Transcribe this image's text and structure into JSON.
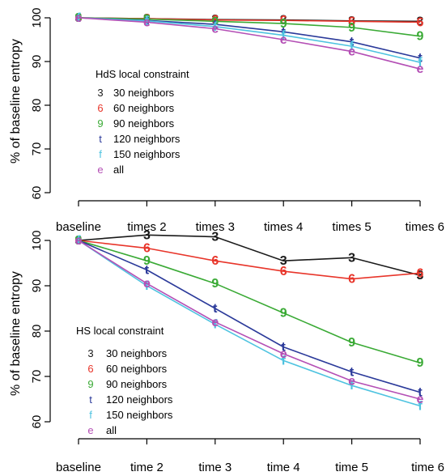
{
  "chart_data": [
    {
      "type": "line",
      "ylabel": "% of baseline entropy",
      "xlabel": "",
      "categories": [
        "baseline",
        "times 2",
        "times 3",
        "times 4",
        "times 5",
        "times 6"
      ],
      "yticks": [
        60,
        70,
        80,
        90,
        100
      ],
      "ylim": [
        58,
        101
      ],
      "grid": false,
      "legend_title": "HdS local constraint",
      "legend_position": "left",
      "series": [
        {
          "name": "30 neighbors",
          "symbol": "3",
          "color": "#1a1a1a",
          "values": [
            100,
            99.8,
            99.6,
            99.5,
            99.3,
            99.2
          ]
        },
        {
          "name": "60 neighbors",
          "symbol": "6",
          "color": "#e8352a",
          "values": [
            100,
            99.8,
            99.5,
            99.4,
            99.2,
            99.0
          ]
        },
        {
          "name": "90 neighbors",
          "symbol": "9",
          "color": "#3aaa35",
          "values": [
            100,
            99.7,
            99.2,
            98.7,
            97.8,
            95.8
          ]
        },
        {
          "name": "120 neighbors",
          "symbol": "t",
          "color": "#2b3a9a",
          "values": [
            100,
            99.4,
            98.5,
            96.8,
            94.5,
            90.8
          ]
        },
        {
          "name": "150 neighbors",
          "symbol": "f",
          "color": "#4ec3e0",
          "values": [
            100,
            99.3,
            98.0,
            96.0,
            93.5,
            89.8
          ]
        },
        {
          "name": "all",
          "symbol": "e",
          "color": "#b44fb5",
          "values": [
            100,
            99.0,
            97.5,
            95.0,
            92.3,
            88.3
          ]
        }
      ]
    },
    {
      "type": "line",
      "ylabel": "% of baseline entropy",
      "xlabel": "",
      "categories": [
        "baseline",
        "time 2",
        "time 3",
        "time 4",
        "time 5",
        "time 6"
      ],
      "yticks": [
        60,
        70,
        80,
        90,
        100
      ],
      "ylim": [
        58,
        101
      ],
      "grid": false,
      "legend_title": "HS local constraint",
      "legend_position": "left",
      "series": [
        {
          "name": "30 neighbors",
          "symbol": "3",
          "color": "#1a1a1a",
          "values": [
            100,
            101.2,
            100.8,
            95.5,
            96.2,
            92.3
          ]
        },
        {
          "name": "60 neighbors",
          "symbol": "6",
          "color": "#e8352a",
          "values": [
            100,
            98.3,
            95.5,
            93.2,
            91.5,
            92.8
          ]
        },
        {
          "name": "90 neighbors",
          "symbol": "9",
          "color": "#3aaa35",
          "values": [
            100,
            95.5,
            90.5,
            84.0,
            77.5,
            73.0
          ]
        },
        {
          "name": "120 neighbors",
          "symbol": "t",
          "color": "#2b3a9a",
          "values": [
            100,
            93.5,
            85.0,
            76.5,
            71.0,
            66.5
          ]
        },
        {
          "name": "150 neighbors",
          "symbol": "f",
          "color": "#4ec3e0",
          "values": [
            100,
            90.0,
            81.5,
            73.5,
            68.0,
            63.5
          ]
        },
        {
          "name": "all",
          "symbol": "e",
          "color": "#b44fb5",
          "values": [
            100,
            90.5,
            82.0,
            75.0,
            69.0,
            65.0
          ]
        }
      ]
    }
  ]
}
